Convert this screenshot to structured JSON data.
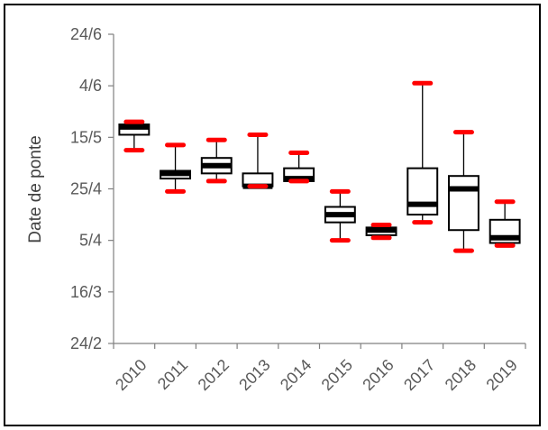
{
  "chart_data": {
    "type": "box",
    "xlabel": "",
    "ylabel": "Date de ponte",
    "categories": [
      "2010",
      "2011",
      "2012",
      "2013",
      "2014",
      "2015",
      "2016",
      "2017",
      "2018",
      "2019"
    ],
    "y_ticks": [
      "24/2",
      "16/3",
      "5/4",
      "25/4",
      "15/5",
      "4/6",
      "24/6"
    ],
    "ylim": [
      "24/2",
      "24/6"
    ],
    "series": [
      {
        "values": [
          {
            "category": "2010",
            "whisker_low": "10/5",
            "q1": "16/5",
            "median": "19/5",
            "q3": "20/5",
            "whisker_high": "21/5"
          },
          {
            "category": "2011",
            "whisker_low": "24/4",
            "q1": "29/4",
            "median": "1/5",
            "q3": "2/5",
            "whisker_high": "12/5"
          },
          {
            "category": "2012",
            "whisker_low": "28/4",
            "q1": "1/5",
            "median": "4/5",
            "q3": "7/5",
            "whisker_high": "14/5"
          },
          {
            "category": "2013",
            "whisker_low": "26/4",
            "q1": "26/4",
            "median": "26/4",
            "q3": "1/5",
            "whisker_high": "16/5"
          },
          {
            "category": "2014",
            "whisker_low": "28/4",
            "q1": "28/4",
            "median": "29/4",
            "q3": "3/5",
            "whisker_high": "9/5"
          },
          {
            "category": "2015",
            "whisker_low": "5/4",
            "q1": "12/4",
            "median": "15/4",
            "q3": "18/4",
            "whisker_high": "24/4"
          },
          {
            "category": "2016",
            "whisker_low": "6/4",
            "q1": "7/4",
            "median": "9/4",
            "q3": "10/4",
            "whisker_high": "11/4"
          },
          {
            "category": "2017",
            "whisker_low": "12/4",
            "q1": "15/4",
            "median": "19/4",
            "q3": "3/5",
            "whisker_high": "5/6"
          },
          {
            "category": "2018",
            "whisker_low": "1/4",
            "q1": "9/4",
            "median": "25/4",
            "q3": "30/4",
            "whisker_high": "17/5"
          },
          {
            "category": "2019",
            "whisker_low": "3/4",
            "q1": "4/4",
            "median": "6/4",
            "q3": "13/4",
            "whisker_high": "20/4"
          }
        ]
      }
    ],
    "colors": {
      "box_fill": "#ffffff",
      "box_stroke": "#000000",
      "median": "#000000",
      "whisker_cap": "#ff0000",
      "axis": "#808080",
      "text": "#595959",
      "title": "#404040"
    },
    "grid": false,
    "legend": "none"
  }
}
